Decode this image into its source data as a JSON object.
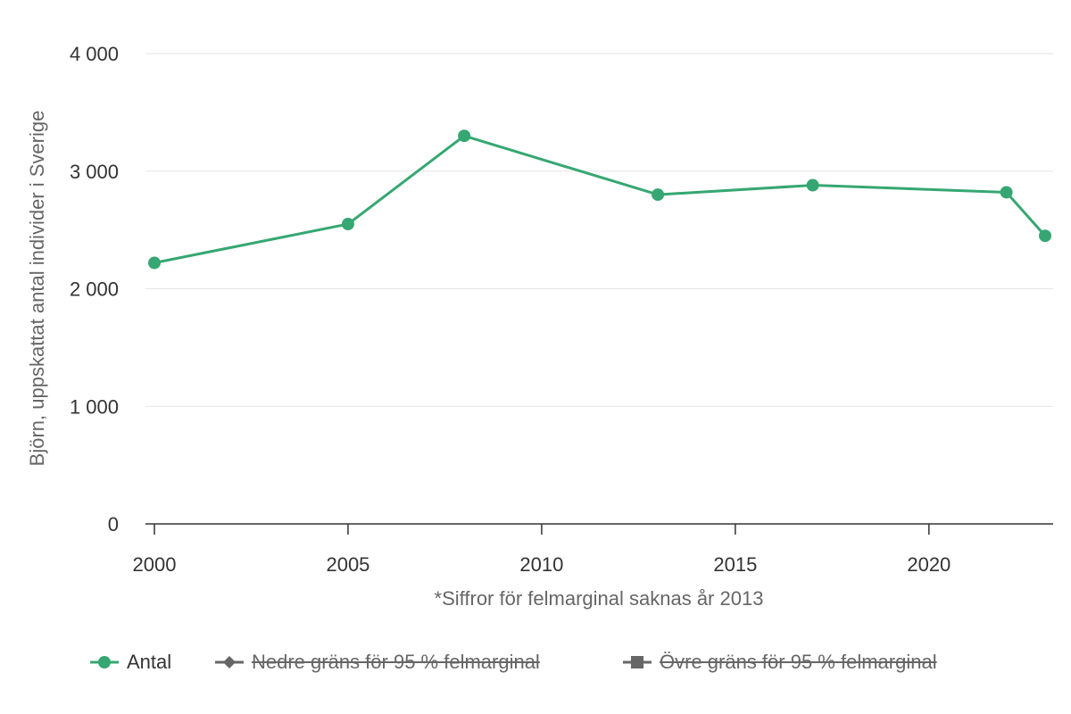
{
  "chart_data": {
    "type": "line",
    "ylabel": "Björn, uppskattat antal individer i Sverige",
    "xlabel": "*Siffror för felmarginal saknas år 2013",
    "ylim": [
      0,
      4000
    ],
    "xlim": [
      2000,
      2023
    ],
    "y_ticks": [
      0,
      1000,
      2000,
      3000,
      4000
    ],
    "y_tick_labels": [
      "0",
      "1 000",
      "2 000",
      "3 000",
      "4 000"
    ],
    "x_ticks": [
      2000,
      2005,
      2010,
      2015,
      2020
    ],
    "x_tick_labels": [
      "2000",
      "2005",
      "2010",
      "2015",
      "2020"
    ],
    "grid": true,
    "legend_position": "bottom",
    "series": [
      {
        "name": "Antal",
        "color": "#36a772",
        "marker": "circle",
        "visible": true,
        "x": [
          2000,
          2005,
          2008,
          2013,
          2017,
          2022,
          2023
        ],
        "values": [
          2220,
          2550,
          3300,
          2800,
          2880,
          2820,
          2450
        ]
      },
      {
        "name": "Nedre gräns för 95 % felmarginal",
        "color": "#666666",
        "marker": "diamond",
        "visible": false
      },
      {
        "name": "Övre gräns för 95 % felmarginal",
        "color": "#666666",
        "marker": "square",
        "visible": false
      }
    ]
  }
}
